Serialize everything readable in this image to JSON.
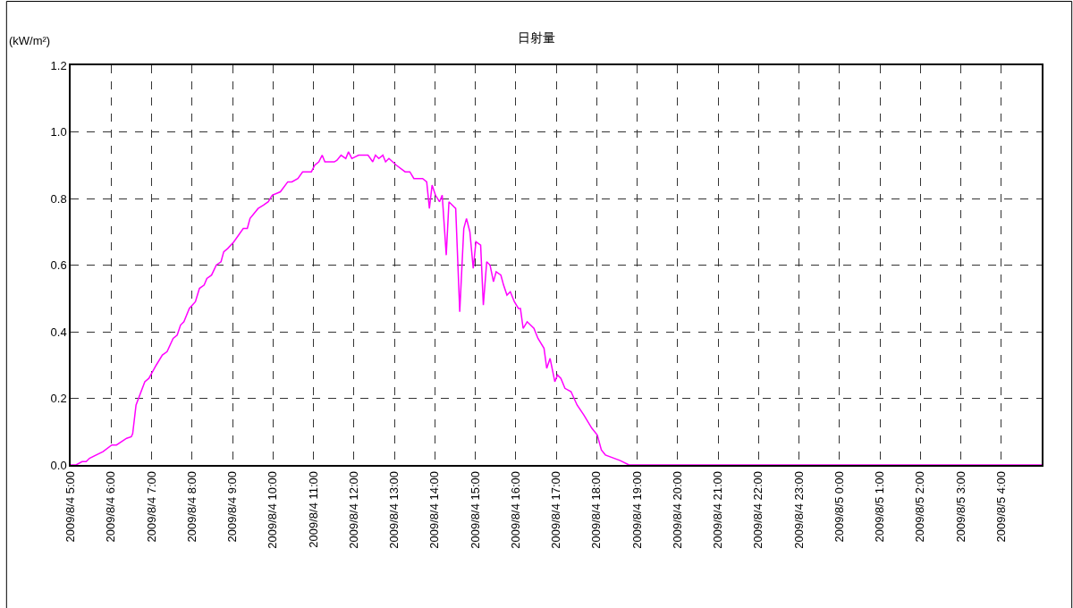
{
  "chart_data": {
    "type": "line",
    "title": "日射量",
    "ylabel": "(kW/m²)",
    "x": [
      "2009-08-04T05:00",
      "2009-08-04T05:08",
      "2009-08-04T05:17",
      "2009-08-04T05:23",
      "2009-08-04T05:28",
      "2009-08-04T05:48",
      "2009-08-04T06:01",
      "2009-08-04T06:08",
      "2009-08-04T06:23",
      "2009-08-04T06:30",
      "2009-08-04T06:32",
      "2009-08-04T06:37",
      "2009-08-04T06:50",
      "2009-08-04T06:56",
      "2009-08-04T07:07",
      "2009-08-04T07:16",
      "2009-08-04T07:23",
      "2009-08-04T07:32",
      "2009-08-04T07:38",
      "2009-08-04T07:43",
      "2009-08-04T07:48",
      "2009-08-04T07:56",
      "2009-08-04T08:05",
      "2009-08-04T08:11",
      "2009-08-04T08:18",
      "2009-08-04T08:22",
      "2009-08-04T08:29",
      "2009-08-04T08:36",
      "2009-08-04T08:43",
      "2009-08-04T08:47",
      "2009-08-04T08:53",
      "2009-08-04T09:02",
      "2009-08-04T09:16",
      "2009-08-04T09:22",
      "2009-08-04T09:26",
      "2009-08-04T09:38",
      "2009-08-04T09:46",
      "2009-08-04T09:53",
      "2009-08-04T09:59",
      "2009-08-04T10:11",
      "2009-08-04T10:22",
      "2009-08-04T10:28",
      "2009-08-04T10:37",
      "2009-08-04T10:44",
      "2009-08-04T10:57",
      "2009-08-04T11:02",
      "2009-08-04T11:08",
      "2009-08-04T11:13",
      "2009-08-04T11:17",
      "2009-08-04T11:24",
      "2009-08-04T11:31",
      "2009-08-04T11:35",
      "2009-08-04T11:41",
      "2009-08-04T11:48",
      "2009-08-04T11:52",
      "2009-08-04T11:57",
      "2009-08-04T12:07",
      "2009-08-04T12:16",
      "2009-08-04T12:21",
      "2009-08-04T12:28",
      "2009-08-04T12:32",
      "2009-08-04T12:37",
      "2009-08-04T12:43",
      "2009-08-04T12:47",
      "2009-08-04T12:52",
      "2009-08-04T13:03",
      "2009-08-04T13:16",
      "2009-08-04T13:23",
      "2009-08-04T13:29",
      "2009-08-04T13:42",
      "2009-08-04T13:48",
      "2009-08-04T13:52",
      "2009-08-04T13:56",
      "2009-08-04T14:01",
      "2009-08-04T14:07",
      "2009-08-04T14:11",
      "2009-08-04T14:17",
      "2009-08-04T14:21",
      "2009-08-04T14:31",
      "2009-08-04T14:37",
      "2009-08-04T14:43",
      "2009-08-04T14:47",
      "2009-08-04T14:52",
      "2009-08-04T14:57",
      "2009-08-04T15:01",
      "2009-08-04T15:08",
      "2009-08-04T15:12",
      "2009-08-04T15:17",
      "2009-08-04T15:22",
      "2009-08-04T15:27",
      "2009-08-04T15:31",
      "2009-08-04T15:38",
      "2009-08-04T15:42",
      "2009-08-04T15:47",
      "2009-08-04T15:52",
      "2009-08-04T15:58",
      "2009-08-04T16:04",
      "2009-08-04T16:07",
      "2009-08-04T16:11",
      "2009-08-04T16:17",
      "2009-08-04T16:27",
      "2009-08-04T16:33",
      "2009-08-04T16:42",
      "2009-08-04T16:46",
      "2009-08-04T16:51",
      "2009-08-04T16:58",
      "2009-08-04T17:02",
      "2009-08-04T17:07",
      "2009-08-04T17:13",
      "2009-08-04T17:22",
      "2009-08-04T17:31",
      "2009-08-04T17:41",
      "2009-08-04T17:53",
      "2009-08-04T18:01",
      "2009-08-04T18:07",
      "2009-08-04T18:13",
      "2009-08-04T18:35",
      "2009-08-04T18:48",
      "2009-08-04T19:01",
      "2009-08-05T05:00"
    ],
    "series": [
      {
        "color": "#ff00ff",
        "values": [
          0.0,
          0.0,
          0.01,
          0.01,
          0.02,
          0.04,
          0.06,
          0.06,
          0.08,
          0.085,
          0.094,
          0.18,
          0.25,
          0.26,
          0.3,
          0.33,
          0.34,
          0.38,
          0.39,
          0.42,
          0.43,
          0.47,
          0.49,
          0.53,
          0.54,
          0.56,
          0.57,
          0.6,
          0.61,
          0.64,
          0.65,
          0.67,
          0.71,
          0.71,
          0.74,
          0.77,
          0.78,
          0.79,
          0.81,
          0.82,
          0.85,
          0.85,
          0.86,
          0.88,
          0.88,
          0.9,
          0.91,
          0.93,
          0.91,
          0.91,
          0.91,
          0.915,
          0.93,
          0.92,
          0.94,
          0.92,
          0.93,
          0.93,
          0.93,
          0.91,
          0.93,
          0.92,
          0.93,
          0.91,
          0.92,
          0.9,
          0.88,
          0.88,
          0.86,
          0.86,
          0.85,
          0.77,
          0.84,
          0.81,
          0.79,
          0.81,
          0.63,
          0.79,
          0.77,
          0.46,
          0.71,
          0.74,
          0.7,
          0.59,
          0.67,
          0.66,
          0.48,
          0.61,
          0.6,
          0.55,
          0.58,
          0.57,
          0.54,
          0.51,
          0.52,
          0.49,
          0.47,
          0.47,
          0.41,
          0.43,
          0.41,
          0.38,
          0.35,
          0.29,
          0.32,
          0.25,
          0.27,
          0.26,
          0.23,
          0.22,
          0.18,
          0.15,
          0.11,
          0.09,
          0.045,
          0.03,
          0.013,
          0.0,
          0.0,
          0.0
        ]
      }
    ],
    "xlim": [
      "2009-08-04T05:00",
      "2009-08-05T05:00"
    ],
    "xticks": [
      {
        "value": "2009-08-04T05:00",
        "label": "2009/8/4 5:00"
      },
      {
        "value": "2009-08-04T06:00",
        "label": "2009/8/4 6:00"
      },
      {
        "value": "2009-08-04T07:00",
        "label": "2009/8/4 7:00"
      },
      {
        "value": "2009-08-04T08:00",
        "label": "2009/8/4 8:00"
      },
      {
        "value": "2009-08-04T09:00",
        "label": "2009/8/4 9:00"
      },
      {
        "value": "2009-08-04T10:00",
        "label": "2009/8/4 10:00"
      },
      {
        "value": "2009-08-04T11:00",
        "label": "2009/8/4 11:00"
      },
      {
        "value": "2009-08-04T12:00",
        "label": "2009/8/4 12:00"
      },
      {
        "value": "2009-08-04T13:00",
        "label": "2009/8/4 13:00"
      },
      {
        "value": "2009-08-04T14:00",
        "label": "2009/8/4 14:00"
      },
      {
        "value": "2009-08-04T15:00",
        "label": "2009/8/4 15:00"
      },
      {
        "value": "2009-08-04T16:00",
        "label": "2009/8/4 16:00"
      },
      {
        "value": "2009-08-04T17:00",
        "label": "2009/8/4 17:00"
      },
      {
        "value": "2009-08-04T18:00",
        "label": "2009/8/4 18:00"
      },
      {
        "value": "2009-08-04T19:00",
        "label": "2009/8/4 19:00"
      },
      {
        "value": "2009-08-04T20:00",
        "label": "2009/8/4 20:00"
      },
      {
        "value": "2009-08-04T21:00",
        "label": "2009/8/4 21:00"
      },
      {
        "value": "2009-08-04T22:00",
        "label": "2009/8/4 22:00"
      },
      {
        "value": "2009-08-04T23:00",
        "label": "2009/8/4 23:00"
      },
      {
        "value": "2009-08-05T00:00",
        "label": "2009/8/5 0:00"
      },
      {
        "value": "2009-08-05T01:00",
        "label": "2009/8/5 1:00"
      },
      {
        "value": "2009-08-05T02:00",
        "label": "2009/8/5 2:00"
      },
      {
        "value": "2009-08-05T03:00",
        "label": "2009/8/5 3:00"
      },
      {
        "value": "2009-08-05T04:00",
        "label": "2009/8/5 4:00"
      }
    ],
    "ylim": [
      0,
      1.2
    ],
    "yticks": [
      {
        "value": 0,
        "label": "0.0"
      },
      {
        "value": 0.2,
        "label": "0.2"
      },
      {
        "value": 0.4,
        "label": "0.4"
      },
      {
        "value": 0.6,
        "label": "0.6"
      },
      {
        "value": 0.8,
        "label": "0.8"
      },
      {
        "value": 1.0,
        "label": "1.0"
      },
      {
        "value": 1.2,
        "label": "1.2"
      }
    ],
    "grid": true,
    "marker": "none",
    "line_style": "solid"
  }
}
